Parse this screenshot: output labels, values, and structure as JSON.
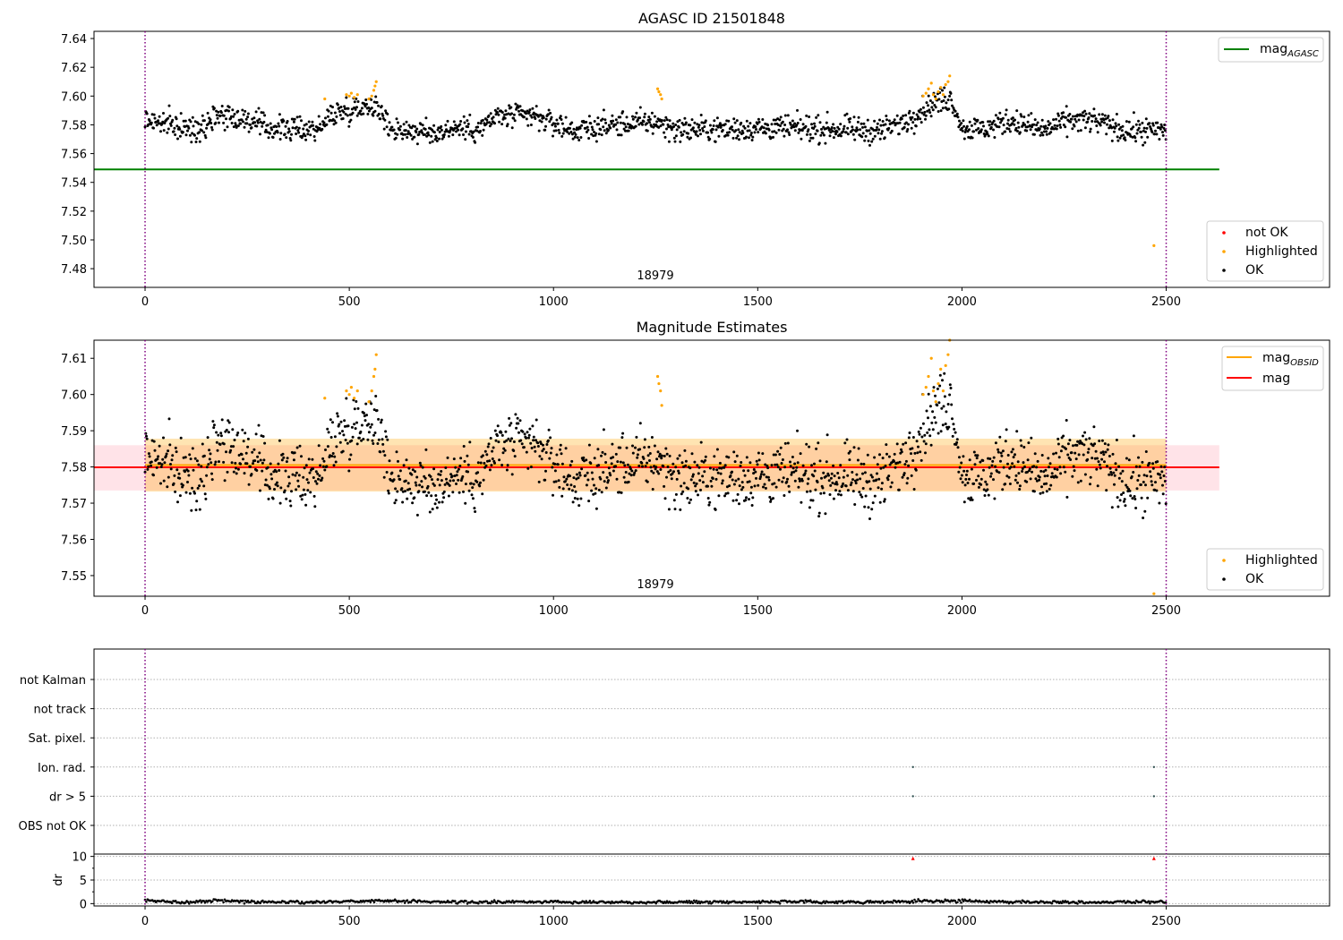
{
  "chart_data": [
    {
      "type": "scatter",
      "title": "AGASC ID 21501848",
      "annotation": "18979",
      "xticks": [
        0,
        500,
        1000,
        1500,
        2000,
        2500
      ],
      "xlim": [
        -125,
        2900
      ],
      "yticks": [
        "7.48",
        "7.50",
        "7.52",
        "7.54",
        "7.56",
        "7.58",
        "7.60",
        "7.62",
        "7.64"
      ],
      "ylim": [
        7.467,
        7.645
      ],
      "obs_bounds": [
        0,
        2500
      ],
      "reference_lines": [
        {
          "name": "mag",
          "name_sub": "AGASC",
          "y": 7.549,
          "x": [
            -125,
            2630
          ],
          "color": "#008000"
        }
      ],
      "highlighted_points": [
        {
          "x": 440,
          "y": 7.598
        },
        {
          "x": 493,
          "y": 7.601
        },
        {
          "x": 500,
          "y": 7.6
        },
        {
          "x": 505,
          "y": 7.602
        },
        {
          "x": 512,
          "y": 7.599
        },
        {
          "x": 520,
          "y": 7.601
        },
        {
          "x": 548,
          "y": 7.598
        },
        {
          "x": 555,
          "y": 7.6
        },
        {
          "x": 560,
          "y": 7.604
        },
        {
          "x": 563,
          "y": 7.607
        },
        {
          "x": 566,
          "y": 7.61
        },
        {
          "x": 1255,
          "y": 7.605
        },
        {
          "x": 1258,
          "y": 7.603
        },
        {
          "x": 1262,
          "y": 7.601
        },
        {
          "x": 1265,
          "y": 7.598
        },
        {
          "x": 1905,
          "y": 7.6
        },
        {
          "x": 1912,
          "y": 7.602
        },
        {
          "x": 1918,
          "y": 7.605
        },
        {
          "x": 1925,
          "y": 7.609
        },
        {
          "x": 1930,
          "y": 7.601
        },
        {
          "x": 1936,
          "y": 7.598
        },
        {
          "x": 1942,
          "y": 7.603
        },
        {
          "x": 1948,
          "y": 7.606
        },
        {
          "x": 1954,
          "y": 7.601
        },
        {
          "x": 1960,
          "y": 7.608
        },
        {
          "x": 1966,
          "y": 7.61
        },
        {
          "x": 1970,
          "y": 7.614
        },
        {
          "x": 2470,
          "y": 7.496
        }
      ],
      "ok_trend": [
        [
          0,
          7.584
        ],
        [
          120,
          7.576
        ],
        [
          180,
          7.588
        ],
        [
          240,
          7.584
        ],
        [
          300,
          7.578
        ],
        [
          380,
          7.577
        ],
        [
          430,
          7.578
        ],
        [
          460,
          7.588
        ],
        [
          520,
          7.592
        ],
        [
          560,
          7.595
        ],
        [
          600,
          7.578
        ],
        [
          700,
          7.574
        ],
        [
          760,
          7.578
        ],
        [
          820,
          7.577
        ],
        [
          860,
          7.586
        ],
        [
          950,
          7.586
        ],
        [
          1050,
          7.576
        ],
        [
          1150,
          7.58
        ],
        [
          1250,
          7.582
        ],
        [
          1300,
          7.577
        ],
        [
          1400,
          7.577
        ],
        [
          1550,
          7.578
        ],
        [
          1700,
          7.577
        ],
        [
          1800,
          7.576
        ],
        [
          1860,
          7.582
        ],
        [
          1900,
          7.59
        ],
        [
          1945,
          7.597
        ],
        [
          1975,
          7.598
        ],
        [
          2000,
          7.578
        ],
        [
          2050,
          7.577
        ],
        [
          2120,
          7.583
        ],
        [
          2200,
          7.576
        ],
        [
          2260,
          7.583
        ],
        [
          2320,
          7.583
        ],
        [
          2400,
          7.576
        ],
        [
          2500,
          7.576
        ]
      ],
      "legend": [
        {
          "label": "not OK",
          "color": "#ff0000"
        },
        {
          "label": "Highlighted",
          "color": "#ffa500"
        },
        {
          "label": "OK",
          "color": "#000000"
        }
      ]
    },
    {
      "type": "scatter",
      "title": "Magnitude Estimates",
      "annotation": "18979",
      "xticks": [
        0,
        500,
        1000,
        1500,
        2000,
        2500
      ],
      "xlim": [
        -125,
        2900
      ],
      "yticks": [
        "7.55",
        "7.56",
        "7.57",
        "7.58",
        "7.59",
        "7.60",
        "7.61"
      ],
      "ylim": [
        7.5443,
        7.615
      ],
      "obs_bounds": [
        0,
        2500
      ],
      "bands": [
        {
          "y": [
            7.5735,
            7.586
          ],
          "x": [
            -125,
            2630
          ],
          "color": "#ffc0cb"
        },
        {
          "y": [
            7.5732,
            7.5878
          ],
          "x": [
            0,
            2500
          ],
          "color": "#ffa500"
        }
      ],
      "reference_lines": [
        {
          "name": "mag",
          "name_sub": "OBSID",
          "y": 7.5805,
          "x": [
            0,
            2500
          ],
          "color": "#ffa500"
        },
        {
          "name": "mag",
          "name_sub": "",
          "y": 7.5799,
          "x": [
            -125,
            2630
          ],
          "color": "#ff0000"
        }
      ],
      "highlighted_points": [
        {
          "x": 440,
          "y": 7.599
        },
        {
          "x": 493,
          "y": 7.601
        },
        {
          "x": 500,
          "y": 7.6
        },
        {
          "x": 505,
          "y": 7.602
        },
        {
          "x": 512,
          "y": 7.599
        },
        {
          "x": 520,
          "y": 7.601
        },
        {
          "x": 548,
          "y": 7.598
        },
        {
          "x": 555,
          "y": 7.601
        },
        {
          "x": 560,
          "y": 7.605
        },
        {
          "x": 563,
          "y": 7.607
        },
        {
          "x": 566,
          "y": 7.611
        },
        {
          "x": 1255,
          "y": 7.605
        },
        {
          "x": 1258,
          "y": 7.603
        },
        {
          "x": 1262,
          "y": 7.601
        },
        {
          "x": 1265,
          "y": 7.597
        },
        {
          "x": 1905,
          "y": 7.6
        },
        {
          "x": 1912,
          "y": 7.602
        },
        {
          "x": 1918,
          "y": 7.605
        },
        {
          "x": 1925,
          "y": 7.61
        },
        {
          "x": 1930,
          "y": 7.601
        },
        {
          "x": 1936,
          "y": 7.598
        },
        {
          "x": 1942,
          "y": 7.603
        },
        {
          "x": 1948,
          "y": 7.607
        },
        {
          "x": 1954,
          "y": 7.601
        },
        {
          "x": 1960,
          "y": 7.608
        },
        {
          "x": 1966,
          "y": 7.611
        },
        {
          "x": 1970,
          "y": 7.615
        },
        {
          "x": 2470,
          "y": 7.545
        }
      ],
      "ok_trend": [
        [
          0,
          7.584
        ],
        [
          120,
          7.576
        ],
        [
          180,
          7.588
        ],
        [
          240,
          7.584
        ],
        [
          300,
          7.578
        ],
        [
          380,
          7.577
        ],
        [
          430,
          7.578
        ],
        [
          460,
          7.588
        ],
        [
          520,
          7.592
        ],
        [
          560,
          7.595
        ],
        [
          600,
          7.578
        ],
        [
          700,
          7.574
        ],
        [
          760,
          7.578
        ],
        [
          820,
          7.577
        ],
        [
          860,
          7.586
        ],
        [
          950,
          7.586
        ],
        [
          1050,
          7.576
        ],
        [
          1150,
          7.58
        ],
        [
          1250,
          7.582
        ],
        [
          1300,
          7.577
        ],
        [
          1400,
          7.577
        ],
        [
          1550,
          7.578
        ],
        [
          1700,
          7.577
        ],
        [
          1800,
          7.576
        ],
        [
          1860,
          7.582
        ],
        [
          1900,
          7.59
        ],
        [
          1945,
          7.597
        ],
        [
          1975,
          7.598
        ],
        [
          2000,
          7.578
        ],
        [
          2050,
          7.577
        ],
        [
          2120,
          7.583
        ],
        [
          2200,
          7.576
        ],
        [
          2260,
          7.583
        ],
        [
          2320,
          7.583
        ],
        [
          2400,
          7.576
        ],
        [
          2500,
          7.576
        ]
      ],
      "legend": [
        {
          "label": "Highlighted",
          "color": "#ffa500"
        },
        {
          "label": "OK",
          "color": "#000000"
        }
      ]
    },
    {
      "type": "scatter",
      "title": "",
      "xticks": [
        0,
        500,
        1000,
        1500,
        2000,
        2500
      ],
      "xlim": [
        -125,
        2900
      ],
      "obs_bounds": [
        0,
        2500
      ],
      "flag_rows": [
        "not Kalman",
        "not track",
        "Sat. pixel.",
        "Ion. rad.",
        "dr > 5",
        "OBS not OK"
      ],
      "flag_points": [
        {
          "row": "Ion. rad.",
          "x": [
            1880,
            2470
          ]
        },
        {
          "row": "dr > 5",
          "x": [
            1880,
            2470
          ]
        }
      ]
    },
    {
      "type": "line",
      "title": "",
      "ylabel": "dr",
      "yticks": [
        "0",
        "5",
        "10"
      ],
      "ylim": [
        -0.5,
        10.5
      ],
      "xticks": [
        0,
        500,
        1000,
        1500,
        2000,
        2500
      ],
      "xlim": [
        -125,
        2900
      ],
      "obs_bounds": [
        0,
        2500
      ],
      "dr_trend": [
        [
          0,
          0.6
        ],
        [
          100,
          0.3
        ],
        [
          180,
          0.7
        ],
        [
          250,
          0.4
        ],
        [
          400,
          0.3
        ],
        [
          560,
          0.6
        ],
        [
          800,
          0.3
        ],
        [
          1000,
          0.4
        ],
        [
          1200,
          0.3
        ],
        [
          1500,
          0.4
        ],
        [
          1800,
          0.3
        ],
        [
          1950,
          0.6
        ],
        [
          2100,
          0.4
        ],
        [
          2300,
          0.3
        ],
        [
          2500,
          0.4
        ]
      ],
      "outliers": [
        {
          "x": 1880,
          "y": 9.6
        },
        {
          "x": 2470,
          "y": 9.6
        }
      ]
    }
  ]
}
